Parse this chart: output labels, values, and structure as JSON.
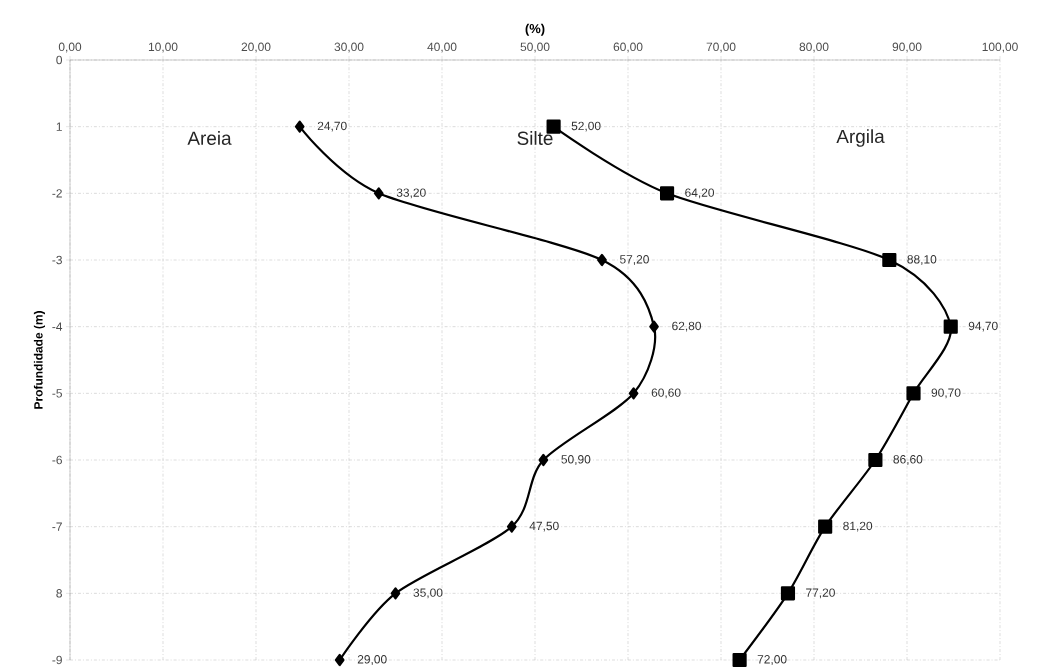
{
  "chart_data": {
    "type": "line",
    "xlabel": "(%)",
    "ylabel": "Profundidade (m)",
    "xlim": [
      0,
      100
    ],
    "xticks": [
      {
        "value": 0,
        "label": "0,00"
      },
      {
        "value": 10,
        "label": "10,00"
      },
      {
        "value": 20,
        "label": "20,00"
      },
      {
        "value": 30,
        "label": "30,00"
      },
      {
        "value": 40,
        "label": "40,00"
      },
      {
        "value": 50,
        "label": "50,00"
      },
      {
        "value": 60,
        "label": "60,00"
      },
      {
        "value": 70,
        "label": "70,00"
      },
      {
        "value": 80,
        "label": "80,00"
      },
      {
        "value": 90,
        "label": "90,00"
      },
      {
        "value": 100,
        "label": "100,00"
      }
    ],
    "ylim": [
      -9,
      0
    ],
    "yticks": [
      {
        "value": 0,
        "label": "0"
      },
      {
        "value": -1,
        "label": "1"
      },
      {
        "value": -2,
        "label": "-2"
      },
      {
        "value": -3,
        "label": "-3"
      },
      {
        "value": -4,
        "label": "-4"
      },
      {
        "value": -5,
        "label": "-5"
      },
      {
        "value": -6,
        "label": "-6"
      },
      {
        "value": -7,
        "label": "-7"
      },
      {
        "value": -8,
        "label": "8"
      },
      {
        "value": -9,
        "label": "-9"
      }
    ],
    "grid": true,
    "line_style": "solid",
    "annotations": [
      "Areia",
      "Silte",
      "Argila",
      {
        "text": "24,70",
        "x": 24.7,
        "y": -1
      },
      {
        "text": "33,20",
        "x": 33.2,
        "y": -2
      },
      {
        "text": "57,20",
        "x": 57.2,
        "y": -3
      },
      {
        "text": "62,80",
        "x": 62.8,
        "y": -4
      },
      {
        "text": "60,60",
        "x": 60.6,
        "y": -5
      },
      {
        "text": "50,90",
        "x": 50.9,
        "y": -6
      },
      {
        "text": "47,50",
        "x": 47.5,
        "y": -7
      },
      {
        "text": "35,00",
        "x": 35.0,
        "y": -8
      },
      {
        "text": "29,00",
        "x": 29.0,
        "y": -9
      },
      {
        "text": "52,00",
        "x": 52.0,
        "y": -1
      },
      {
        "text": "64,20",
        "x": 64.2,
        "y": -2
      },
      {
        "text": "88,10",
        "x": 88.1,
        "y": -3
      },
      {
        "text": "94,70",
        "x": 94.7,
        "y": -4
      },
      {
        "text": "90,70",
        "x": 90.7,
        "y": -5
      },
      {
        "text": "86,60",
        "x": 86.6,
        "y": -6
      },
      {
        "text": "81,20",
        "x": 81.2,
        "y": -7
      },
      {
        "text": "77,20",
        "x": 77.2,
        "y": -8
      },
      {
        "text": "72,00",
        "x": 72.0,
        "y": -9
      }
    ],
    "series": [
      {
        "color": "#000000",
        "marker": "diamond",
        "x": [
          24.7,
          33.2,
          57.2,
          62.8,
          60.6,
          50.9,
          47.5,
          35.0,
          29.0
        ],
        "values": [
          -1,
          -2,
          -3,
          -4,
          -5,
          -6,
          -7,
          -8,
          -9
        ]
      },
      {
        "color": "#000000",
        "marker": "square",
        "x": [
          52.0,
          64.2,
          88.1,
          94.7,
          90.7,
          86.6,
          81.2,
          77.2,
          72.0
        ],
        "values": [
          -1,
          -2,
          -3,
          -4,
          -5,
          -6,
          -7,
          -8,
          -9
        ]
      }
    ]
  }
}
